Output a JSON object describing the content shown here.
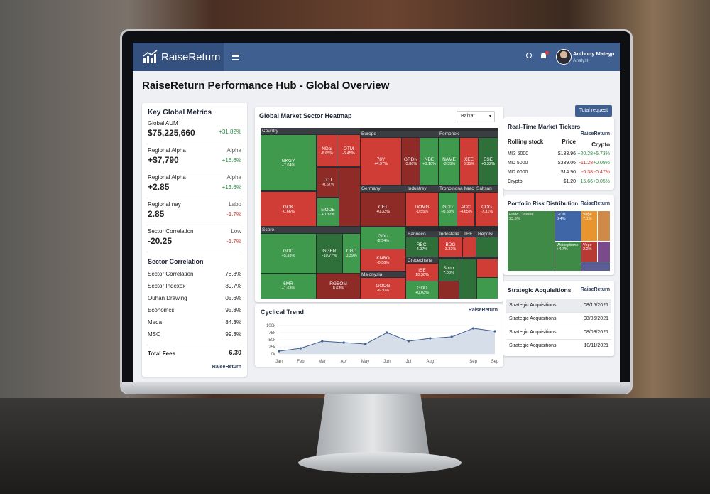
{
  "header": {
    "brand": "RaiseReturn",
    "user_name": "Anthony Mateyo",
    "user_role": "Analyst"
  },
  "title": "RaiseReturn Performance Hub - Global Overview",
  "action_button": "Total request",
  "key_metrics": {
    "title": "Key Global Metrics",
    "items": [
      {
        "label": "Global AUM",
        "value": "$75,225,660",
        "change": "+31.82%"
      },
      {
        "label": "Regional Alpha",
        "value": "+$7,790",
        "note": "Alpha",
        "change": "+16.6%"
      },
      {
        "label": "Regional Alpha",
        "value": "+2.85",
        "note": "Alpha",
        "change": "+13.6%"
      },
      {
        "label": "Regional nay",
        "value": "2.85",
        "note": "Labo",
        "change": "-1.7%"
      },
      {
        "label": "Sector Correlation",
        "value": "-20.25",
        "note": "Low",
        "change": "-1.7%"
      }
    ]
  },
  "sector_correlation": {
    "title": "Sector Correlation",
    "rows": [
      [
        "Sector Correlation",
        "78.3%"
      ],
      [
        "Sector Indexox",
        "89.7%"
      ],
      [
        "Ouhan Drawing",
        "05.6%"
      ],
      [
        "Economcs",
        "95.8%"
      ],
      [
        "Meda",
        "84.3%"
      ],
      [
        "MSC",
        "99.3%"
      ]
    ],
    "total_label": "Total Fees",
    "total_value": "6.30",
    "brand": "RaiseReturn"
  },
  "heatmap": {
    "title": "Global Market Sector Heatmap",
    "filter": "Balxat",
    "sections": [
      "Country",
      "Europe",
      "Fomonek",
      "Germany",
      "Industrey",
      "Tronolnona Itaac",
      "Saltsan",
      "Scoro",
      "Banneco",
      "Indostalia",
      "TEE",
      "Repolsi",
      "Crecechsne",
      "Malonysia"
    ],
    "tiles": [
      {
        "name": "GKGY",
        "change": "+7.04%"
      },
      {
        "name": "NDai",
        "change": "-6.65%"
      },
      {
        "name": "OTM",
        "change": "-6.45%"
      },
      {
        "name": "LOT",
        "change": "-0.67%"
      },
      {
        "name": "GOK",
        "change": "-0.66%"
      },
      {
        "name": "MODE",
        "change": "+0.37%"
      },
      {
        "name": "78Y",
        "change": "+4.97%"
      },
      {
        "name": "GRDN",
        "change": "-3.86%"
      },
      {
        "name": "NBE",
        "change": "+8.10%"
      },
      {
        "name": "NAME",
        "change": "-3.35%"
      },
      {
        "name": "XEE",
        "change": "3.35%"
      },
      {
        "name": "ESE",
        "change": "+0.32%"
      },
      {
        "name": "CET",
        "change": "+0.33%"
      },
      {
        "name": "DOMG",
        "change": "-0.55%"
      },
      {
        "name": "GDD",
        "change": "+0.53%"
      },
      {
        "name": "ACC",
        "change": "-4.65%"
      },
      {
        "name": "COG",
        "change": "-7.31%"
      },
      {
        "name": "GDD",
        "change": "+5.33%"
      },
      {
        "name": "GGER",
        "change": "-10.77%"
      },
      {
        "name": "CGD",
        "change": "0.39%"
      },
      {
        "name": "6MR",
        "change": "+1.63%"
      },
      {
        "name": "RGBOM",
        "change": "8.63%"
      },
      {
        "name": "GOU",
        "change": "-2.54%"
      },
      {
        "name": "KNBO",
        "change": "-0.56%"
      },
      {
        "name": "GOOG",
        "change": "-6.30%"
      },
      {
        "name": "RBCI",
        "change": "4.97%"
      },
      {
        "name": "BDG",
        "change": "3.33%"
      },
      {
        "name": "ISE",
        "change": "10.30%"
      },
      {
        "name": "GDD",
        "change": "+0.03%"
      },
      {
        "name": "Sontr",
        "change": "7.08%"
      }
    ]
  },
  "trend": {
    "title": "Cyclical Trend",
    "brand": "RaiseReturn",
    "yticks": [
      {
        "value": 0,
        "label": "0k"
      },
      {
        "value": 25,
        "label": "25k"
      },
      {
        "value": 50,
        "label": "50k"
      },
      {
        "value": 75,
        "label": "75k"
      },
      {
        "value": 100,
        "label": "100k"
      }
    ],
    "months": [
      "Jan",
      "Feb",
      "Mar",
      "Apr",
      "May",
      "Jun",
      "Jul",
      "Aug",
      null,
      "Sep",
      "Sep"
    ],
    "values": [
      10,
      20,
      45,
      40,
      35,
      75,
      45,
      55,
      60,
      90,
      80
    ]
  },
  "tickers": {
    "title": "Real-Time Market Tickers",
    "brand": "RaiseReturn",
    "columns": [
      "Rolling stock",
      "Price",
      "Crypto"
    ],
    "rows": [
      [
        "MI3 5000",
        "$133.96",
        "+20.28",
        "+6.73%"
      ],
      [
        "MD 5000",
        "$339.06",
        "-11.28",
        "+0.09%"
      ],
      [
        "MD 0000",
        "$14.90",
        "-6.38",
        "-0.47%"
      ],
      [
        "Crypto",
        "$1.20",
        "+15.66",
        "+0.05%"
      ]
    ]
  },
  "risk": {
    "title": "Portfolio Risk Distribution",
    "brand": "RaiseReturn",
    "tiles": [
      {
        "name": "Fixed Classes",
        "share": "33.6%"
      },
      {
        "name": "GOD",
        "share": "8.4%"
      },
      {
        "name": "Vege",
        "share": "7.1%"
      },
      {
        "name": "Weisopbone",
        "share": "+4.7%"
      },
      {
        "name": "Vege",
        "share": "2.2%"
      }
    ]
  },
  "acquisitions": {
    "title": "Strategic Acquisitions",
    "brand": "RaiseReturn",
    "rows": [
      [
        "Strategic Acquisitions",
        "08/15/2021"
      ],
      [
        "Strategic Acquisitions",
        "08/05/2021"
      ],
      [
        "Strategic Acquisitions",
        "08/08/2021"
      ],
      [
        "Strategic Acquisitions",
        "10/11/2021"
      ]
    ]
  }
}
